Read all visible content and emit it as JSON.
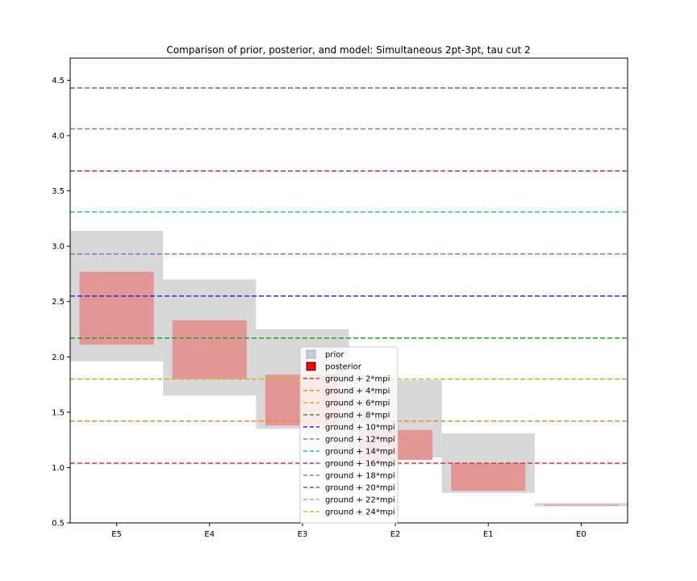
{
  "chart_data": {
    "type": "bar",
    "title": "Comparison of prior, posterior, and model: Simultaneous 2pt-3pt, tau cut 2",
    "xlabel": "",
    "ylabel": "",
    "ylim": [
      0.5,
      4.7
    ],
    "yticks": [
      "0.5",
      "1.0",
      "1.5",
      "2.0",
      "2.5",
      "3.0",
      "3.5",
      "4.0",
      "4.5"
    ],
    "categories": [
      "E5",
      "E4",
      "E3",
      "E2",
      "E1",
      "E0"
    ],
    "grid": false,
    "legend_position": "center",
    "prior": {
      "name": "prior",
      "color": "#d8d8d8",
      "ranges": [
        [
          1.96,
          3.14
        ],
        [
          1.65,
          2.7
        ],
        [
          1.35,
          2.25
        ],
        [
          1.09,
          1.79
        ],
        [
          0.77,
          1.31
        ],
        [
          0.65,
          0.68
        ]
      ]
    },
    "posterior": {
      "name": "posterior",
      "color": "#e39696",
      "ranges": [
        [
          2.11,
          2.77
        ],
        [
          1.8,
          2.33
        ],
        [
          1.38,
          1.84
        ],
        [
          1.07,
          1.34
        ],
        [
          0.79,
          1.04
        ],
        [
          0.655,
          0.665
        ]
      ]
    },
    "reference_lines": [
      {
        "name": "ground + 2*mpi",
        "y": 1.04,
        "color": "#e8332a"
      },
      {
        "name": "ground + 4*mpi",
        "y": 1.42,
        "color": "#f08a24"
      },
      {
        "name": "ground + 6*mpi",
        "y": 1.8,
        "color": "#c8b428"
      },
      {
        "name": "ground + 8*mpi",
        "y": 2.17,
        "color": "#2a9a2a"
      },
      {
        "name": "ground + 10*mpi",
        "y": 2.55,
        "color": "#2a2ae8"
      },
      {
        "name": "ground + 12*mpi",
        "y": 2.93,
        "color": "#9a6fc8"
      },
      {
        "name": "ground + 14*mpi",
        "y": 3.31,
        "color": "#20b8c8"
      },
      {
        "name": "ground + 16*mpi",
        "y": 3.68,
        "color": "#b02ab8"
      },
      {
        "name": "ground + 18*mpi",
        "y": 4.06,
        "color": "#8a8a8a"
      },
      {
        "name": "ground + 20*mpi",
        "y": 4.43,
        "color": "#9a5a4a"
      },
      {
        "name": "ground + 22*mpi",
        "y": null,
        "color": "#e888c0"
      },
      {
        "name": "ground + 24*mpi",
        "y": null,
        "color": "#b8c030"
      }
    ]
  }
}
